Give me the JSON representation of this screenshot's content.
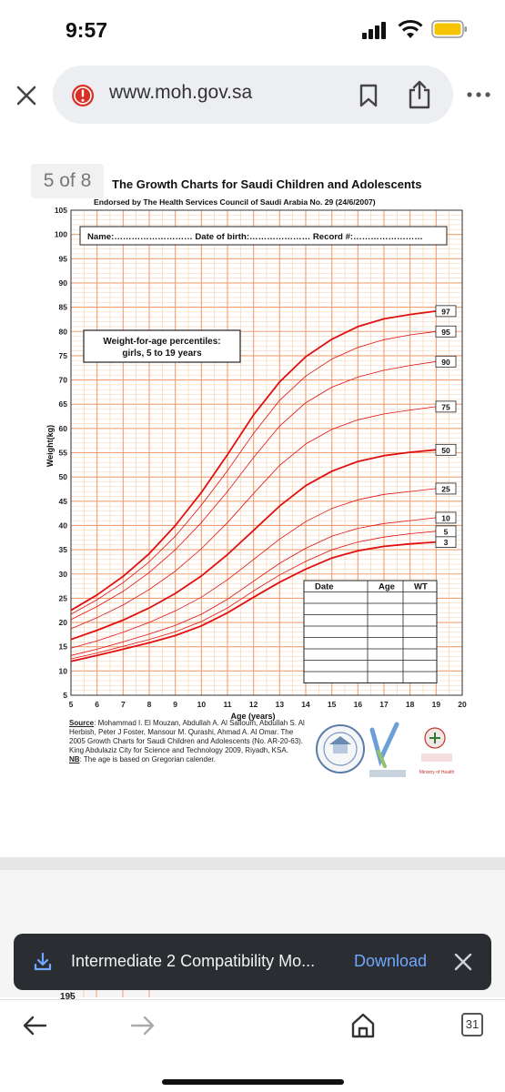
{
  "status": {
    "time": "9:57"
  },
  "browser": {
    "url": "www.moh.gov.sa",
    "tabs_count": "31"
  },
  "pdf": {
    "page_indicator": "5 of 8",
    "lower_page_tick": "195"
  },
  "chart": {
    "title": "The Growth Charts for Saudi Children and Adolescents",
    "subtitle": "Endorsed by The Health Services Council of Saudi Arabia No. 29 (24/6/2007)",
    "name_field": "Name:……………………… Date of birth:………………… Record #:……………………",
    "box_label_1": "Weight-for-age percentiles:",
    "box_label_2": "girls, 5 to 19 years",
    "ylabel": "Weight(kg)",
    "xlabel": "Age (years)",
    "table_headers": [
      "Date",
      "Age",
      "WT"
    ],
    "source_label": "Source",
    "source_text": ": Mohammad I. El Mouzan, Abdullah A. Al Salloum, Abdullah S. Al Herbish, Peter J Foster, Mansour M. Qurashi, Ahmad A. Al Omar. The 2005 Growth Charts for Saudi Children and Adolescents (No. AR-20-63). King Abdulaziz City for Science and Technology 2009, Riyadh, KSA.",
    "nb_label": "NB",
    "nb_text": ": The age is based on Gregorian calender.",
    "logo_text_moh": "Ministry of Health"
  },
  "toast": {
    "text": "Intermediate 2 Compatibility Mo...",
    "button": "Download"
  },
  "colors": {
    "grid_major": "#f0a070",
    "grid_minor": "#f8cda8",
    "curve": "#e01010",
    "accent": "#6fa8ff"
  },
  "chart_data": {
    "type": "line",
    "title": "The Growth Charts for Saudi Children and Adolescents",
    "xlabel": "Age (years)",
    "ylabel": "Weight(kg)",
    "xlim": [
      5,
      20
    ],
    "ylim": [
      5,
      105
    ],
    "x_ticks": [
      5,
      6,
      7,
      8,
      9,
      10,
      11,
      12,
      13,
      14,
      15,
      16,
      17,
      18,
      19,
      20
    ],
    "y_ticks": [
      5,
      10,
      15,
      20,
      25,
      30,
      35,
      40,
      45,
      50,
      55,
      60,
      65,
      70,
      75,
      80,
      85,
      90,
      95,
      100,
      105
    ],
    "x": [
      5,
      6,
      7,
      8,
      9,
      10,
      11,
      12,
      13,
      14,
      15,
      16,
      17,
      18,
      19
    ],
    "series": [
      {
        "name": "3",
        "bold": true,
        "values": [
          12,
          13.2,
          14.5,
          15.8,
          17.3,
          19.3,
          22,
          25.2,
          28.3,
          31,
          33.3,
          34.8,
          35.7,
          36.2,
          36.6
        ]
      },
      {
        "name": "5",
        "bold": false,
        "values": [
          12.5,
          13.7,
          15.1,
          16.5,
          18.1,
          20.2,
          23,
          26.5,
          29.8,
          32.6,
          35,
          36.6,
          37.6,
          38.3,
          38.8
        ]
      },
      {
        "name": "10",
        "bold": false,
        "values": [
          13.2,
          14.5,
          16,
          17.6,
          19.4,
          21.7,
          24.8,
          28.5,
          32.2,
          35.3,
          37.8,
          39.4,
          40.4,
          41,
          41.6
        ]
      },
      {
        "name": "25",
        "bold": false,
        "values": [
          14.7,
          16.2,
          18,
          20,
          22.4,
          25.2,
          28.8,
          33,
          37.2,
          40.8,
          43.5,
          45.3,
          46.4,
          47,
          47.6
        ]
      },
      {
        "name": "50",
        "bold": true,
        "values": [
          16.5,
          18.4,
          20.5,
          23,
          26,
          29.6,
          34,
          39,
          44,
          48.2,
          51.2,
          53.2,
          54.4,
          55.1,
          55.6
        ]
      },
      {
        "name": "75",
        "bold": false,
        "values": [
          18.7,
          21,
          23.6,
          26.8,
          30.6,
          35.2,
          40.6,
          46.6,
          52.4,
          56.8,
          59.8,
          61.8,
          63,
          63.8,
          64.5
        ]
      },
      {
        "name": "90",
        "bold": false,
        "values": [
          20.6,
          23.3,
          26.4,
          30.3,
          35,
          40.6,
          47,
          54,
          60.5,
          65.3,
          68.5,
          70.6,
          72,
          73,
          73.8
        ]
      },
      {
        "name": "95",
        "bold": false,
        "values": [
          21.7,
          24.7,
          28.2,
          32.5,
          37.8,
          44.2,
          51.3,
          59,
          65.8,
          70.8,
          74.3,
          76.7,
          78.3,
          79.3,
          80
        ]
      },
      {
        "name": "97",
        "bold": true,
        "values": [
          22.5,
          25.7,
          29.5,
          34.2,
          40,
          46.8,
          54.6,
          62.8,
          69.6,
          74.8,
          78.4,
          81,
          82.6,
          83.5,
          84.2
        ]
      }
    ]
  }
}
